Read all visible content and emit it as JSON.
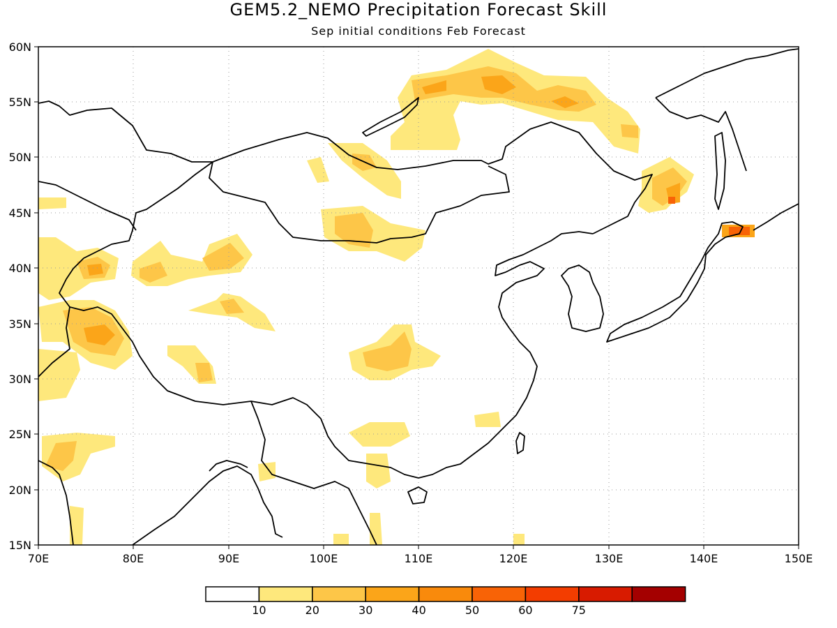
{
  "title": "GEM5.2_NEMO Precipitation Forecast Skill",
  "subtitle": "Sep initial conditions  Feb Forecast",
  "axes": {
    "lon_ticks": [
      "70E",
      "80E",
      "90E",
      "100E",
      "110E",
      "120E",
      "130E",
      "140E",
      "150E"
    ],
    "lat_ticks": [
      "60N",
      "55N",
      "50N",
      "45N",
      "40N",
      "35N",
      "30N",
      "25N",
      "20N",
      "15N"
    ],
    "lon_range": [
      70,
      150
    ],
    "lat_range": [
      15,
      60
    ]
  },
  "legend": {
    "labels": [
      "10",
      "20",
      "30",
      "40",
      "50",
      "60",
      "75"
    ],
    "colors": [
      "#ffffff",
      "#fee87c",
      "#fdc648",
      "#fba519",
      "#f98a0c",
      "#f86306",
      "#f33d00",
      "#d81b00",
      "#a40000"
    ]
  },
  "chart_data": {
    "type": "heatmap",
    "title": "GEM5.2_NEMO Precipitation Forecast Skill",
    "subtitle": "Sep initial conditions  Feb Forecast",
    "x_range": [
      70,
      150
    ],
    "y_range": [
      15,
      60
    ],
    "contour_levels": [
      10,
      20,
      30,
      40,
      50,
      60,
      75
    ],
    "regions": [
      {
        "lon": 117,
        "lat": 56,
        "level": 30
      },
      {
        "lon": 125,
        "lat": 55,
        "level": 20
      },
      {
        "lon": 136,
        "lat": 47,
        "level": 20
      },
      {
        "lon": 143,
        "lat": 43.5,
        "level": 50
      },
      {
        "lon": 103,
        "lat": 43,
        "level": 20
      },
      {
        "lon": 90,
        "lat": 41,
        "level": 20
      },
      {
        "lon": 82,
        "lat": 39.5,
        "level": 20
      },
      {
        "lon": 76,
        "lat": 40,
        "level": 20
      },
      {
        "lon": 76,
        "lat": 34,
        "level": 20
      },
      {
        "lon": 108,
        "lat": 32,
        "level": 20
      },
      {
        "lon": 88,
        "lat": 30.5,
        "level": 20
      },
      {
        "lon": 73,
        "lat": 23,
        "level": 20
      }
    ]
  }
}
